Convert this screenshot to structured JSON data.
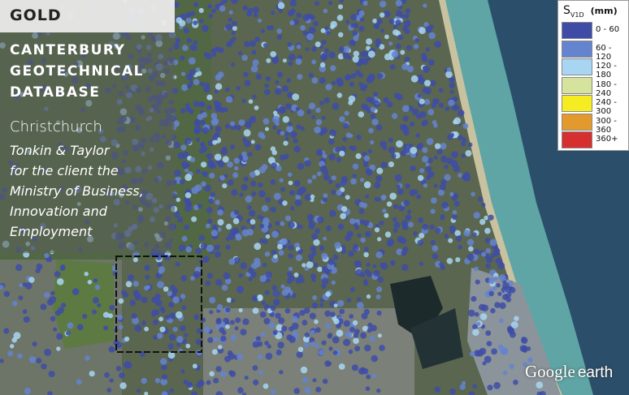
{
  "badge": "GOLD",
  "title_lines": [
    "CANTERBURY",
    "GEOTECHNICAL",
    "DATABASE"
  ],
  "location": "Christchurch",
  "credit_lines": [
    "Tonkin & Taylor",
    "for the client the",
    "Ministry of Business,",
    "Innovation and",
    "Employment"
  ],
  "legend": {
    "symbol": "S",
    "subscript": "V1D",
    "unit": "(mm)",
    "items": [
      {
        "label": "0 - 60",
        "color": "#3e4ca6"
      },
      {
        "label": "60 - 120",
        "color": "#6584cf"
      },
      {
        "label": "120 - 180",
        "color": "#a8d6f2"
      },
      {
        "label": "180 - 240",
        "color": "#d5e39c"
      },
      {
        "label": "240 - 300",
        "color": "#f6ec22"
      },
      {
        "label": "300 - 360",
        "color": "#e39a2c"
      },
      {
        "label": "360+",
        "color": "#d62f2f"
      }
    ]
  },
  "watermark": {
    "brand": "Google",
    "product": "earth"
  }
}
